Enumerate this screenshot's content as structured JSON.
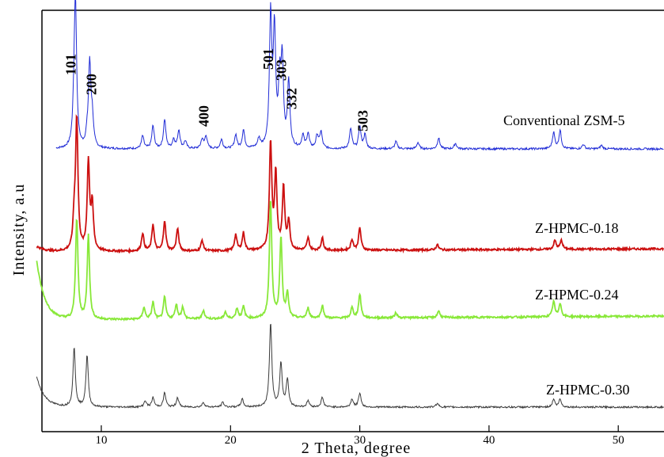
{
  "chart_data": {
    "type": "line",
    "title": "",
    "xlabel": "2 Theta, degree",
    "ylabel": "Intensity, a.u",
    "xlim": [
      5,
      56
    ],
    "xticks": [
      10,
      20,
      30,
      40,
      50
    ],
    "xtick_labels": [
      "10",
      "20",
      "30",
      "40",
      "50"
    ],
    "y_ticks_shown": false,
    "grid": false,
    "legend": "labels beside each curve",
    "peak_labels": [
      {
        "text": "101",
        "x": 8.0
      },
      {
        "text": "200",
        "x": 9.6
      },
      {
        "text": "400",
        "x": 18.3
      },
      {
        "text": "501",
        "x": 23.3
      },
      {
        "text": "303",
        "x": 24.3
      },
      {
        "text": "332",
        "x": 25.1
      },
      {
        "text": "503",
        "x": 30.6
      }
    ],
    "series": [
      {
        "name": "Conventional ZSM-5",
        "color": "#1f2bd6",
        "x_start": 6.5,
        "peaks": [
          [
            7.9,
            35
          ],
          [
            8.0,
            150
          ],
          [
            8.9,
            10
          ],
          [
            9.1,
            90
          ],
          [
            9.3,
            30
          ],
          [
            13.2,
            14
          ],
          [
            14.0,
            25
          ],
          [
            14.9,
            32
          ],
          [
            15.6,
            10
          ],
          [
            16.0,
            20
          ],
          [
            16.5,
            8
          ],
          [
            17.8,
            10
          ],
          [
            18.1,
            14
          ],
          [
            19.3,
            10
          ],
          [
            20.4,
            15
          ],
          [
            21.0,
            20
          ],
          [
            22.2,
            10
          ],
          [
            23.1,
            142
          ],
          [
            23.4,
            124
          ],
          [
            23.8,
            65
          ],
          [
            24.0,
            90
          ],
          [
            24.5,
            72
          ],
          [
            25.6,
            14
          ],
          [
            26.0,
            16
          ],
          [
            26.7,
            14
          ],
          [
            27.0,
            18
          ],
          [
            29.3,
            22
          ],
          [
            30.0,
            24
          ],
          [
            30.4,
            15
          ],
          [
            32.8,
            8
          ],
          [
            34.5,
            7
          ],
          [
            36.1,
            12
          ],
          [
            37.4,
            6
          ],
          [
            45.0,
            18
          ],
          [
            45.5,
            20
          ],
          [
            47.3,
            5
          ],
          [
            48.7,
            4
          ]
        ]
      },
      {
        "name": "Z-HPMC-0.18",
        "color": "#cc1010",
        "x_start": 5.0,
        "peaks": [
          [
            7.9,
            30
          ],
          [
            8.1,
            148
          ],
          [
            9.0,
            100
          ],
          [
            9.3,
            50
          ],
          [
            13.2,
            20
          ],
          [
            14.0,
            30
          ],
          [
            14.9,
            34
          ],
          [
            15.9,
            25
          ],
          [
            17.8,
            12
          ],
          [
            20.4,
            18
          ],
          [
            21.0,
            20
          ],
          [
            23.1,
            120
          ],
          [
            23.5,
            85
          ],
          [
            24.1,
            70
          ],
          [
            24.5,
            32
          ],
          [
            26.0,
            14
          ],
          [
            27.1,
            14
          ],
          [
            29.4,
            12
          ],
          [
            30.0,
            25
          ],
          [
            36.0,
            6
          ],
          [
            45.1,
            10
          ],
          [
            45.6,
            10
          ]
        ]
      },
      {
        "name": "Z-HPMC-0.24",
        "color": "#88e838",
        "x_start": 5.0,
        "peaks": [
          [
            8.1,
            120
          ],
          [
            9.0,
            100
          ],
          [
            13.3,
            14
          ],
          [
            14.0,
            20
          ],
          [
            14.9,
            26
          ],
          [
            15.8,
            17
          ],
          [
            16.3,
            14
          ],
          [
            17.9,
            10
          ],
          [
            19.6,
            8
          ],
          [
            20.5,
            12
          ],
          [
            21.0,
            14
          ],
          [
            23.1,
            140
          ],
          [
            23.9,
            95
          ],
          [
            24.4,
            28
          ],
          [
            26.0,
            12
          ],
          [
            27.1,
            15
          ],
          [
            29.4,
            12
          ],
          [
            30.0,
            28
          ],
          [
            32.8,
            6
          ],
          [
            36.1,
            8
          ],
          [
            45.0,
            18
          ],
          [
            45.5,
            16
          ]
        ]
      },
      {
        "name": "Z-HPMC-0.30",
        "color": "#3a3a3a",
        "x_start": 5.0,
        "peaks": [
          [
            7.9,
            75
          ],
          [
            8.9,
            65
          ],
          [
            13.4,
            8
          ],
          [
            14.0,
            12
          ],
          [
            14.9,
            18
          ],
          [
            15.9,
            12
          ],
          [
            17.9,
            6
          ],
          [
            19.4,
            6
          ],
          [
            20.9,
            10
          ],
          [
            23.1,
            106
          ],
          [
            23.9,
            55
          ],
          [
            24.4,
            35
          ],
          [
            26.0,
            8
          ],
          [
            27.1,
            12
          ],
          [
            29.4,
            10
          ],
          [
            30.0,
            18
          ],
          [
            36.0,
            5
          ],
          [
            45.0,
            10
          ],
          [
            45.5,
            10
          ]
        ]
      }
    ]
  }
}
